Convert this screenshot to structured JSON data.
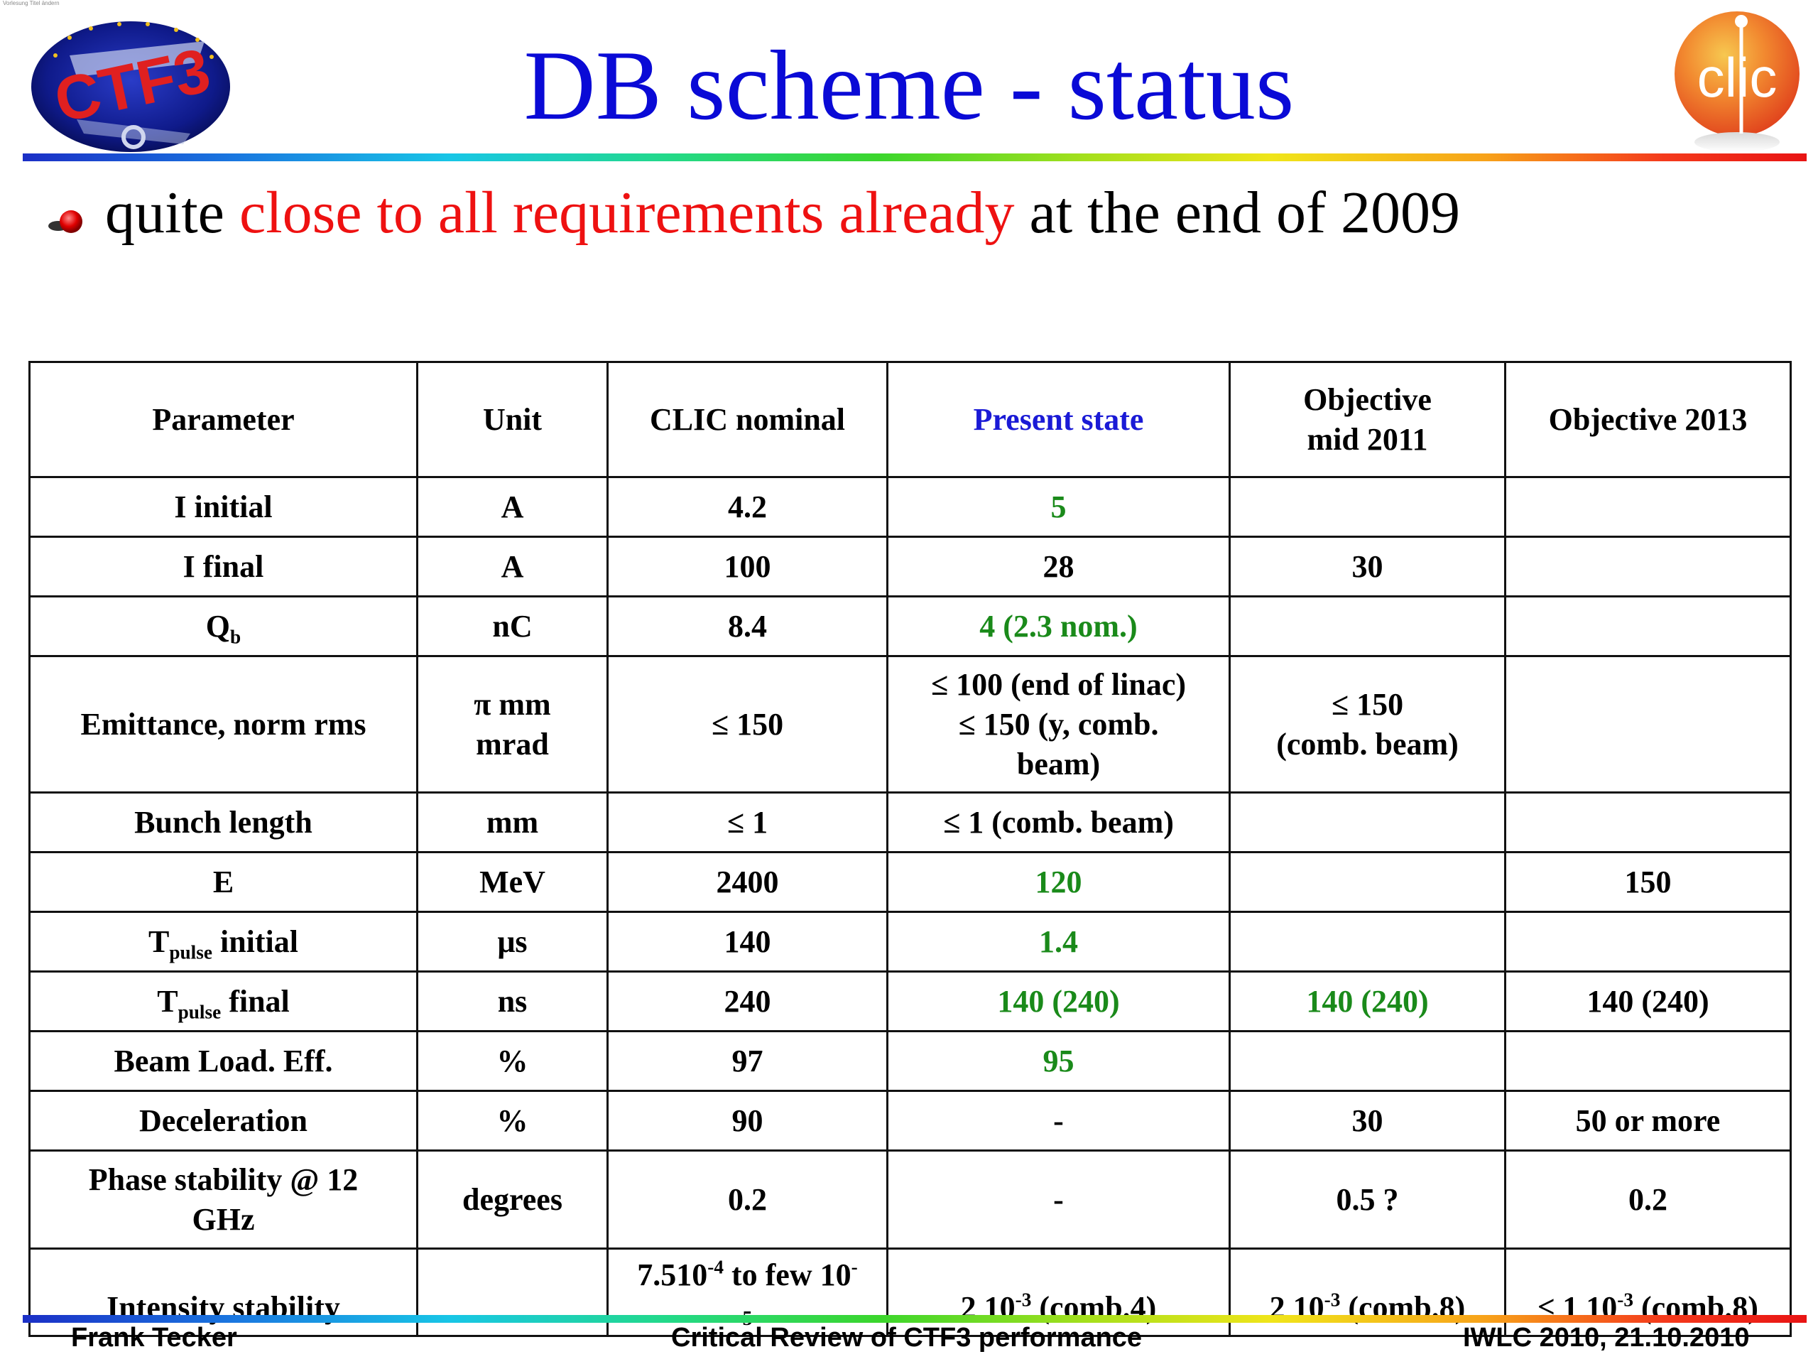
{
  "slide": {
    "title": "DB scheme - status",
    "corner_text": "Vorlesung Titel ändern",
    "bullet": {
      "prefix": "quite ",
      "highlight": "close to all requirements already",
      "suffix": " at the end of 2009",
      "highlight_color": "#ee1111"
    },
    "logos": {
      "left": "CTF3",
      "right": "clic"
    }
  },
  "table": {
    "headers": {
      "parameter": "Parameter",
      "unit": "Unit",
      "clic_nominal": "CLIC nominal",
      "present_state": "Present state",
      "objective_2011_line1": "Objective",
      "objective_2011_line2": "mid 2011",
      "objective_2013": "Objective 2013"
    },
    "rows": {
      "i_initial": {
        "param": "I initial",
        "unit": "A",
        "clic": "4.2",
        "present": "5",
        "obj2011": "",
        "obj2013": ""
      },
      "i_final": {
        "param": "I final",
        "unit": "A",
        "clic": "100",
        "present": "28",
        "obj2011": "30",
        "obj2013": ""
      },
      "qb": {
        "param_main": "Q",
        "param_sub": "b",
        "unit": "nC",
        "clic": "8.4",
        "present": "4 (2.3 nom.)",
        "obj2011": "",
        "obj2013": ""
      },
      "emittance": {
        "param": "Emittance, norm rms",
        "unit_line1": "π mm",
        "unit_line2": "mrad",
        "clic": "≤ 150",
        "present_line1": "≤ 100 (end of linac)",
        "present_line2": "≤ 150 (y, comb.",
        "present_line3": "beam)",
        "obj2011_line1": "≤ 150",
        "obj2011_line2": "(comb. beam)",
        "obj2013": ""
      },
      "bunch_length": {
        "param": "Bunch length",
        "unit": "mm",
        "clic": "≤ 1",
        "present": "≤ 1 (comb. beam)",
        "obj2011": "",
        "obj2013": ""
      },
      "energy": {
        "param": "E",
        "unit": "MeV",
        "clic": "2400",
        "present": "120",
        "obj2011": "",
        "obj2013": "150"
      },
      "tpulse_initial": {
        "param_main": "T",
        "param_sub": "pulse",
        "param_suffix": " initial",
        "unit": "μs",
        "clic": "140",
        "present": "1.4",
        "obj2011": "",
        "obj2013": ""
      },
      "tpulse_final": {
        "param_main": "T",
        "param_sub": "pulse",
        "param_suffix": " final",
        "unit": "ns",
        "clic": "240",
        "present": "140 (240)",
        "obj2011": "140 (240)",
        "obj2013": "140 (240)"
      },
      "beam_load": {
        "param": "Beam Load. Eff.",
        "unit": "%",
        "clic": "97",
        "present": "95",
        "obj2011": "",
        "obj2013": ""
      },
      "deceleration": {
        "param": "Deceleration",
        "unit": "%",
        "clic": "90",
        "present": "-",
        "obj2011": "30",
        "obj2013": "50 or more"
      },
      "phase_stability": {
        "param_line1": "Phase stability @ 12",
        "param_line2": "GHz",
        "unit": "degrees",
        "clic": "0.2",
        "present": "-",
        "obj2011": "0.5 ?",
        "obj2013": "0.2"
      },
      "intensity_stability": {
        "param": "Intensity stability",
        "unit": "",
        "clic_a": "7.510",
        "clic_sup": "-4",
        "clic_b": " to few 10",
        "clic_sup2": "-",
        "clic_sub": "5",
        "present_a": "2 10",
        "present_sup": "-3",
        "present_b": " (comb.4)",
        "obj2011_a": "2 10",
        "obj2011_sup": "-3",
        "obj2011_b": " (comb.8)",
        "obj2013_a": "≤ 1 10",
        "obj2013_sup": "-3",
        "obj2013_b": " (comb.8)"
      }
    },
    "colors": {
      "green": "#1a8a1a",
      "present_header": "#1a1ad6"
    }
  },
  "footer": {
    "left": "Frank Tecker",
    "center": "Critical Review of CTF3 performance",
    "right": "IWLC 2010, 21.10.2010"
  }
}
